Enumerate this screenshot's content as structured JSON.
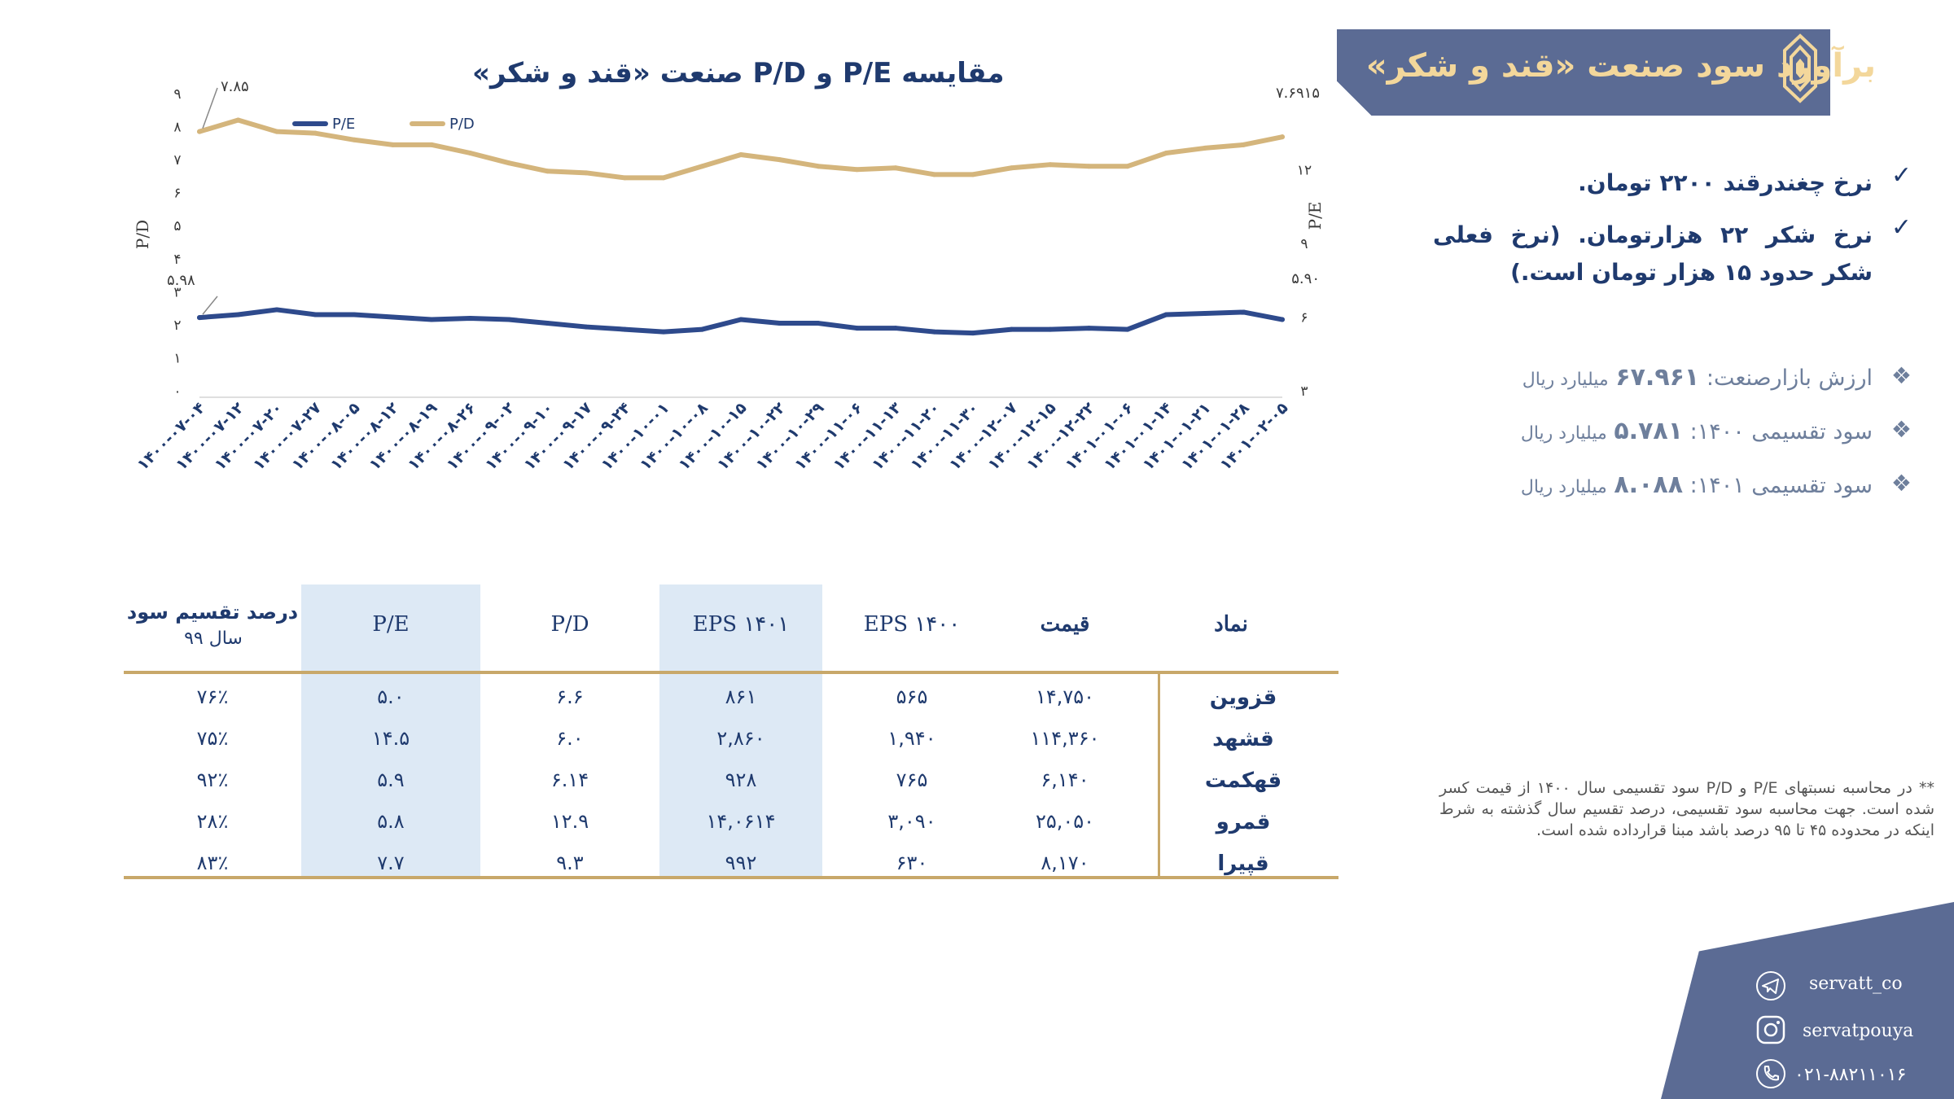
{
  "banner": {
    "title": "برآورد سود صنعت «قند و شکر»"
  },
  "bullets": [
    "نرخ چغندرقند ۲۲۰۰ تومان.",
    "نرخ شکر ۲۲ هزارتومان. (نرخ فعلی شکر حدود ۱۵ هزار تومان است.)"
  ],
  "info": [
    {
      "label": "ارزش بازارصنعت:",
      "value": "۶۷.۹۶۱",
      "unit": "میلیارد ریال"
    },
    {
      "label": "سود تقسیمی ۱۴۰۰:",
      "value": "۵.۷۸۱",
      "unit": "میلیارد ریال"
    },
    {
      "label": "سود تقسیمی ۱۴۰۱:",
      "value": "۸.۰۸۸",
      "unit": "میلیارد ریال"
    }
  ],
  "chart_data": {
    "type": "line",
    "title": "مقایسه P/E و P/D صنعت «قند و شکر»",
    "ylabel_left": "P/D",
    "ylabel_right": "P/E",
    "left_ticks": [
      "۰",
      "۱",
      "۲",
      "۳",
      "۴",
      "۵",
      "۶",
      "۷",
      "۸",
      "۹"
    ],
    "left_ylim": [
      0,
      9
    ],
    "right_ticks": [
      "۳",
      "۶",
      "۹",
      "۱۲"
    ],
    "right_ylim": [
      3,
      15
    ],
    "legend_position": "top-left",
    "x": [
      "۱۴۰۰-۰۷-۰۴",
      "۱۴۰۰-۰۷-۱۲",
      "۱۴۰۰-۰۷-۲۰",
      "۱۴۰۰-۰۷-۲۷",
      "۱۴۰۰-۰۸-۰۵",
      "۱۴۰۰-۰۸-۱۲",
      "۱۴۰۰-۰۸-۱۹",
      "۱۴۰۰-۰۸-۲۶",
      "۱۴۰۰-۰۹-۰۲",
      "۱۴۰۰-۰۹-۱۰",
      "۱۴۰۰-۰۹-۱۷",
      "۱۴۰۰-۰۹-۲۴",
      "۱۴۰۰-۱۰-۰۱",
      "۱۴۰۰-۱۰-۰۸",
      "۱۴۰۰-۱۰-۱۵",
      "۱۴۰۰-۱۰-۲۲",
      "۱۴۰۰-۱۰-۲۹",
      "۱۴۰۰-۱۱-۰۶",
      "۱۴۰۰-۱۱-۱۳",
      "۱۴۰۰-۱۱-۲۰",
      "۱۴۰۰-۱۱-۳۰",
      "۱۴۰۰-۱۲-۰۷",
      "۱۴۰۰-۱۲-۱۵",
      "۱۴۰۰-۱۲-۲۲",
      "۱۴۰۱-۰۱-۰۶",
      "۱۴۰۱-۰۱-۱۴",
      "۱۴۰۱-۰۱-۲۱",
      "۱۴۰۱-۰۱-۲۸",
      "۱۴۰۱-۰۲-۰۵"
    ],
    "series": [
      {
        "name": "P/E",
        "axis": "right",
        "color": "#2e4a8c",
        "values": [
          5.98,
          6.1,
          6.3,
          6.1,
          6.1,
          6.0,
          5.9,
          5.95,
          5.9,
          5.75,
          5.6,
          5.5,
          5.4,
          5.5,
          5.9,
          5.75,
          5.75,
          5.55,
          5.55,
          5.4,
          5.35,
          5.5,
          5.5,
          5.55,
          5.5,
          6.1,
          6.15,
          6.2,
          5.9
        ]
      },
      {
        "name": "P/D",
        "axis": "left",
        "color": "#d4b57c",
        "values": [
          7.85,
          8.2,
          7.85,
          7.8,
          7.6,
          7.45,
          7.45,
          7.2,
          6.9,
          6.65,
          6.6,
          6.45,
          6.45,
          6.8,
          7.15,
          7.0,
          6.8,
          6.7,
          6.75,
          6.55,
          6.55,
          6.75,
          6.85,
          6.8,
          6.8,
          7.2,
          7.35,
          7.45,
          7.69
        ]
      }
    ],
    "annotations": {
      "pd_first": "۷.۸۵",
      "pd_last": "۷.۶۹۱۵",
      "pe_first": "۵.۹۸",
      "pe_last": "۵.۹۰"
    }
  },
  "table": {
    "headers": {
      "symbol": "نماد",
      "price": "قیمت",
      "eps1400": "EPS ۱۴۰۰",
      "eps1401": "EPS ۱۴۰۱",
      "pd": "P/D",
      "pe": "P/E",
      "div_line1": "درصد تقسیم سود",
      "div_line2": "سال ۹۹"
    },
    "rows": [
      {
        "symbol": "قزوین",
        "price": "۱۴,۷۵۰",
        "eps1400": "۵۶۵",
        "eps1401": "۸۶۱",
        "pd": "۶.۶",
        "pe": "۵.۰",
        "div": "۷۶٪"
      },
      {
        "symbol": "قشهد",
        "price": "۱۱۴,۳۶۰",
        "eps1400": "۱,۹۴۰",
        "eps1401": "۲,۸۶۰",
        "pd": "۶.۰",
        "pe": "۱۴.۵",
        "div": "۷۵٪"
      },
      {
        "symbol": "قهکمت",
        "price": "۶,۱۴۰",
        "eps1400": "۷۶۵",
        "eps1401": "۹۲۸",
        "pd": "۶.۱۴",
        "pe": "۵.۹",
        "div": "۹۲٪"
      },
      {
        "symbol": "قمرو",
        "price": "۲۵,۰۵۰",
        "eps1400": "۳,۰۹۰",
        "eps1401": "۱۴,۰۶۱۴",
        "pd": "۱۲.۹",
        "pe": "۵.۸",
        "div": "۲۸٪"
      },
      {
        "symbol": "قپیرا",
        "price": "۸,۱۷۰",
        "eps1400": "۶۳۰",
        "eps1401": "۹۹۲",
        "pd": "۹.۳",
        "pe": "۷.۷",
        "div": "۸۳٪"
      }
    ]
  },
  "footnote": "** در محاسبه نسبتهای P/E و P/D سود تقسیمی سال ۱۴۰۰ از قیمت کسر شده است. جهت محاسبه سود تقسیمی، درصد تقسیم سال گذشته به شرط اینکه در محدوده ۴۵ تا ۹۵ درصد باشد مبنا قرارداده شده است.",
  "social": {
    "telegram": "servatt_co",
    "instagram": "servatpouya",
    "phone": "۰۲۱-۸۸۲۱۱۰۱۶"
  },
  "colors": {
    "navy": "#1f3a6e",
    "banner": "#5b6b94",
    "gold": "#d4b57c",
    "shade": "#dde9f5"
  }
}
